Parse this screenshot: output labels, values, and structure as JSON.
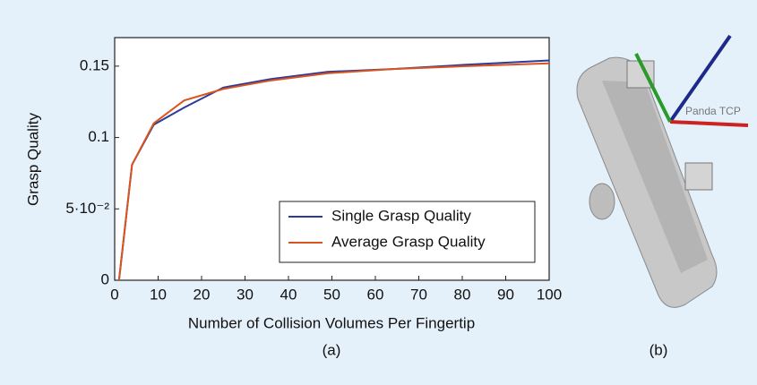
{
  "chart_data": {
    "type": "line",
    "xlabel": "Number of Collision Volumes Per Fingertip",
    "ylabel": "Grasp Quality",
    "x": [
      1,
      4,
      9,
      16,
      25,
      36,
      49,
      64,
      81,
      100
    ],
    "series": [
      {
        "name": "Single Grasp Quality",
        "color": "#2b3a9b",
        "values": [
          0,
          0.081,
          0.109,
          0.121,
          0.135,
          0.141,
          0.146,
          0.148,
          0.151,
          0.154
        ]
      },
      {
        "name": "Average Grasp Quality",
        "color": "#d9541e",
        "values": [
          0,
          0.081,
          0.11,
          0.126,
          0.134,
          0.14,
          0.145,
          0.148,
          0.15,
          0.152
        ]
      }
    ],
    "xlim": [
      0,
      100
    ],
    "xticks": [
      0,
      10,
      20,
      30,
      40,
      50,
      60,
      70,
      80,
      90,
      100
    ],
    "ylim": [
      0,
      0.17
    ],
    "yticks": [
      0,
      {
        "value": 0.05,
        "label": "5·10⁻²"
      },
      0.1,
      0.15
    ],
    "legend": "lower right",
    "panel_a_label": "(a)",
    "panel_b_label": "(b)",
    "annotation": "Panda TCP"
  }
}
